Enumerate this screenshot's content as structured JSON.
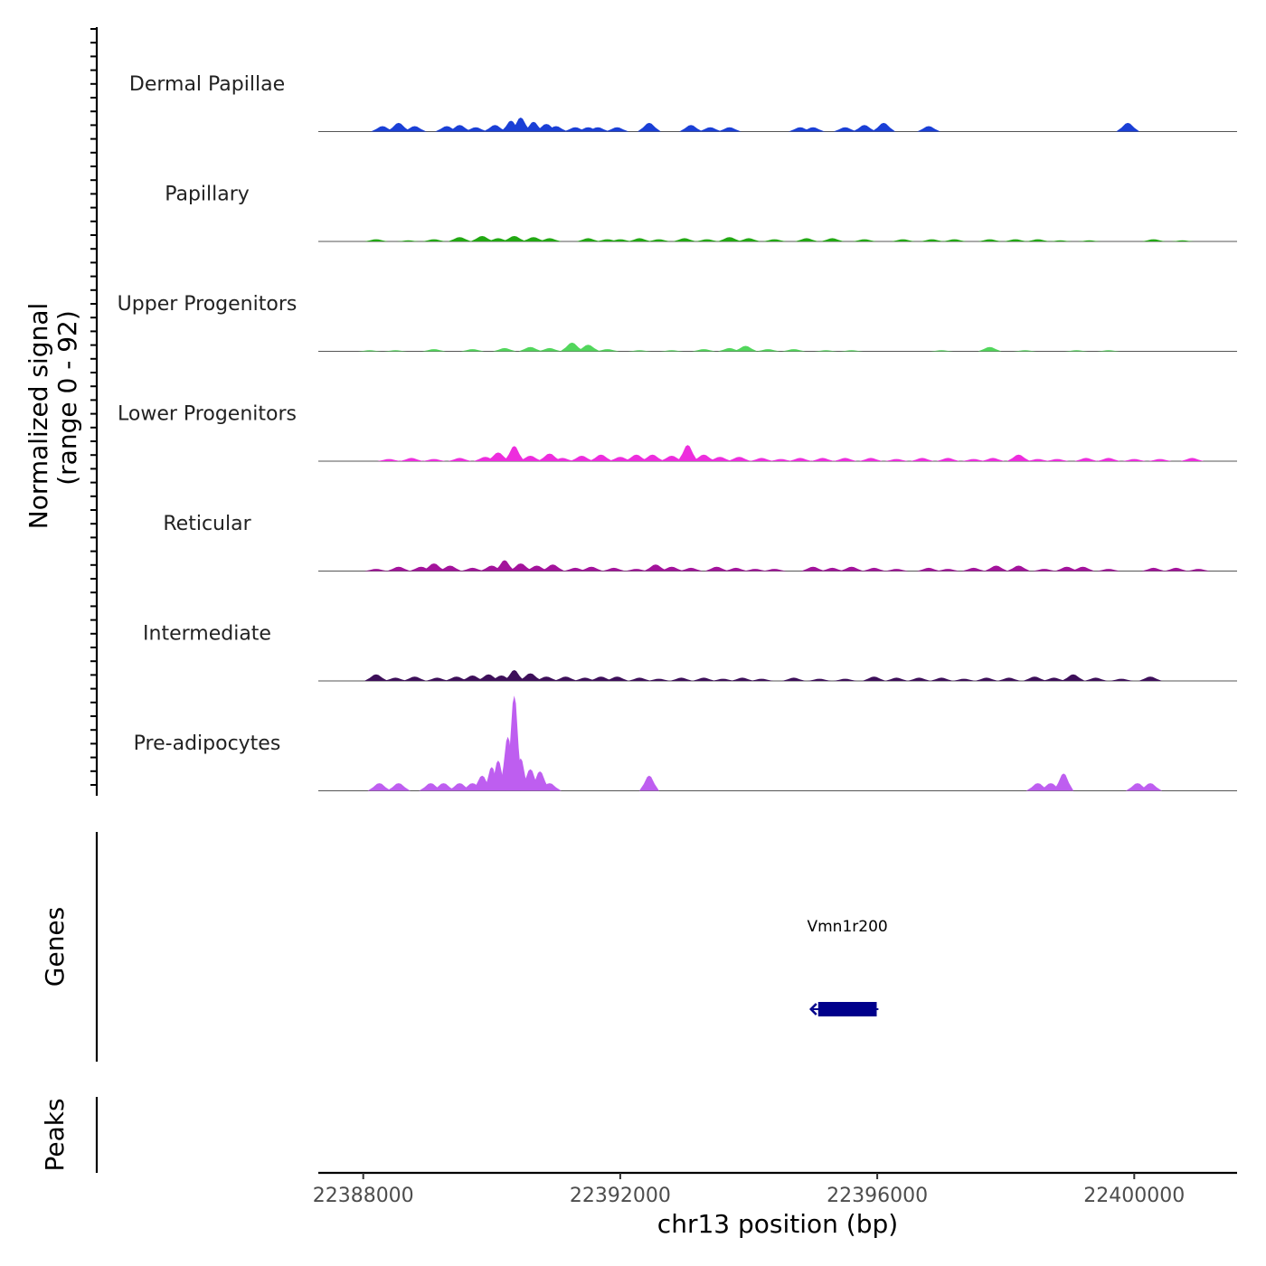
{
  "chart_data": {
    "type": "area",
    "title": "",
    "chromosome": "chr13",
    "xlabel": "chr13 position (bp)",
    "ylabel": "Normalized signal",
    "ylabel_range": "(range 0 - 92)",
    "ylim": [
      0,
      92
    ],
    "xlim": [
      22387300,
      22401600
    ],
    "x_ticks": [
      22388000,
      22392000,
      22396000,
      22400000
    ],
    "x_tick_labels": [
      "22388000",
      "22392000",
      "22396000",
      "22400000"
    ],
    "series": [
      {
        "name": "Dermal Papillae",
        "color": "#1a3fd6",
        "peaks": [
          [
            22388300,
            5
          ],
          [
            22388550,
            8
          ],
          [
            22388800,
            5
          ],
          [
            22389300,
            5
          ],
          [
            22389500,
            6
          ],
          [
            22389750,
            4
          ],
          [
            22390050,
            6
          ],
          [
            22390300,
            10
          ],
          [
            22390450,
            13
          ],
          [
            22390650,
            9
          ],
          [
            22390850,
            7
          ],
          [
            22391000,
            5
          ],
          [
            22391300,
            4
          ],
          [
            22391500,
            4
          ],
          [
            22391650,
            4
          ],
          [
            22391950,
            4
          ],
          [
            22392450,
            8
          ],
          [
            22393100,
            6
          ],
          [
            22393400,
            4
          ],
          [
            22393700,
            4
          ],
          [
            22394800,
            4
          ],
          [
            22395000,
            4
          ],
          [
            22395500,
            4
          ],
          [
            22395800,
            6
          ],
          [
            22396100,
            8
          ],
          [
            22396800,
            5
          ],
          [
            22399900,
            8
          ]
        ]
      },
      {
        "name": "Papillary",
        "color": "#21a812",
        "peaks": [
          [
            22388200,
            2
          ],
          [
            22388700,
            1
          ],
          [
            22389100,
            2
          ],
          [
            22389500,
            4
          ],
          [
            22389850,
            5
          ],
          [
            22390100,
            3
          ],
          [
            22390350,
            5
          ],
          [
            22390650,
            4
          ],
          [
            22390900,
            3
          ],
          [
            22391500,
            3
          ],
          [
            22391800,
            2
          ],
          [
            22392000,
            2
          ],
          [
            22392300,
            3
          ],
          [
            22392600,
            2
          ],
          [
            22393000,
            3
          ],
          [
            22393350,
            2
          ],
          [
            22393700,
            4
          ],
          [
            22394000,
            3
          ],
          [
            22394400,
            2
          ],
          [
            22394900,
            3
          ],
          [
            22395300,
            3
          ],
          [
            22395800,
            2
          ],
          [
            22396400,
            2
          ],
          [
            22396850,
            2
          ],
          [
            22397200,
            2
          ],
          [
            22397750,
            2
          ],
          [
            22398150,
            2
          ],
          [
            22398500,
            2
          ],
          [
            22398850,
            1
          ],
          [
            22399300,
            1
          ],
          [
            22400300,
            2
          ],
          [
            22400750,
            1
          ]
        ]
      },
      {
        "name": "Upper Progenitors",
        "color": "#52d65c",
        "peaks": [
          [
            22388100,
            1
          ],
          [
            22388500,
            1
          ],
          [
            22389100,
            2
          ],
          [
            22389700,
            2
          ],
          [
            22390200,
            3
          ],
          [
            22390600,
            4
          ],
          [
            22390900,
            3
          ],
          [
            22391250,
            8
          ],
          [
            22391500,
            6
          ],
          [
            22391800,
            2
          ],
          [
            22392300,
            1
          ],
          [
            22392800,
            1
          ],
          [
            22393300,
            2
          ],
          [
            22393700,
            3
          ],
          [
            22393950,
            5
          ],
          [
            22394300,
            2
          ],
          [
            22394700,
            2
          ],
          [
            22395200,
            1
          ],
          [
            22395600,
            1
          ],
          [
            22397000,
            1
          ],
          [
            22397750,
            4
          ],
          [
            22398300,
            1
          ],
          [
            22399100,
            1
          ],
          [
            22399600,
            1
          ]
        ]
      },
      {
        "name": "Lower Progenitors",
        "color": "#ed2ddd",
        "peaks": [
          [
            22388400,
            2
          ],
          [
            22388750,
            3
          ],
          [
            22389100,
            2
          ],
          [
            22389500,
            3
          ],
          [
            22389900,
            4
          ],
          [
            22390100,
            8
          ],
          [
            22390350,
            14
          ],
          [
            22390600,
            5
          ],
          [
            22390900,
            7
          ],
          [
            22391100,
            3
          ],
          [
            22391400,
            5
          ],
          [
            22391700,
            6
          ],
          [
            22392000,
            4
          ],
          [
            22392250,
            6
          ],
          [
            22392500,
            6
          ],
          [
            22392800,
            5
          ],
          [
            22393050,
            15
          ],
          [
            22393300,
            6
          ],
          [
            22393550,
            4
          ],
          [
            22393850,
            4
          ],
          [
            22394200,
            3
          ],
          [
            22394500,
            2
          ],
          [
            22394800,
            3
          ],
          [
            22395150,
            3
          ],
          [
            22395500,
            3
          ],
          [
            22395900,
            3
          ],
          [
            22396300,
            2
          ],
          [
            22396700,
            3
          ],
          [
            22397100,
            3
          ],
          [
            22397500,
            2
          ],
          [
            22397800,
            3
          ],
          [
            22398200,
            6
          ],
          [
            22398500,
            2
          ],
          [
            22398800,
            2
          ],
          [
            22399250,
            3
          ],
          [
            22399600,
            3
          ],
          [
            22400000,
            2
          ],
          [
            22400400,
            2
          ],
          [
            22400900,
            3
          ]
        ]
      },
      {
        "name": "Reticular",
        "color": "#a3139b",
        "peaks": [
          [
            22388200,
            2
          ],
          [
            22388550,
            4
          ],
          [
            22388900,
            4
          ],
          [
            22389100,
            7
          ],
          [
            22389350,
            5
          ],
          [
            22389700,
            3
          ],
          [
            22390000,
            5
          ],
          [
            22390200,
            10
          ],
          [
            22390450,
            7
          ],
          [
            22390700,
            5
          ],
          [
            22390950,
            6
          ],
          [
            22391300,
            3
          ],
          [
            22391550,
            4
          ],
          [
            22391900,
            3
          ],
          [
            22392250,
            2
          ],
          [
            22392550,
            6
          ],
          [
            22392800,
            4
          ],
          [
            22393100,
            3
          ],
          [
            22393500,
            4
          ],
          [
            22393800,
            3
          ],
          [
            22394100,
            2
          ],
          [
            22394400,
            2
          ],
          [
            22395000,
            4
          ],
          [
            22395300,
            3
          ],
          [
            22395600,
            4
          ],
          [
            22395950,
            3
          ],
          [
            22396300,
            2
          ],
          [
            22396800,
            3
          ],
          [
            22397100,
            2
          ],
          [
            22397500,
            3
          ],
          [
            22397850,
            5
          ],
          [
            22398200,
            5
          ],
          [
            22398600,
            2
          ],
          [
            22398950,
            4
          ],
          [
            22399200,
            4
          ],
          [
            22399600,
            2
          ],
          [
            22400300,
            3
          ],
          [
            22400650,
            3
          ],
          [
            22401000,
            2
          ]
        ]
      },
      {
        "name": "Intermediate",
        "color": "#3d0f59",
        "peaks": [
          [
            22388200,
            6
          ],
          [
            22388500,
            3
          ],
          [
            22388800,
            4
          ],
          [
            22389150,
            3
          ],
          [
            22389450,
            4
          ],
          [
            22389700,
            5
          ],
          [
            22389950,
            6
          ],
          [
            22390150,
            5
          ],
          [
            22390350,
            10
          ],
          [
            22390600,
            7
          ],
          [
            22390850,
            4
          ],
          [
            22391150,
            4
          ],
          [
            22391450,
            3
          ],
          [
            22391700,
            4
          ],
          [
            22391950,
            4
          ],
          [
            22392300,
            3
          ],
          [
            22392600,
            2
          ],
          [
            22392950,
            3
          ],
          [
            22393300,
            3
          ],
          [
            22393600,
            2
          ],
          [
            22393900,
            3
          ],
          [
            22394200,
            2
          ],
          [
            22394700,
            3
          ],
          [
            22395100,
            2
          ],
          [
            22395500,
            2
          ],
          [
            22395950,
            4
          ],
          [
            22396300,
            3
          ],
          [
            22396650,
            3
          ],
          [
            22397000,
            3
          ],
          [
            22397350,
            2
          ],
          [
            22397700,
            3
          ],
          [
            22398050,
            3
          ],
          [
            22398450,
            4
          ],
          [
            22398750,
            3
          ],
          [
            22399050,
            6
          ],
          [
            22399400,
            3
          ],
          [
            22399800,
            2
          ],
          [
            22400250,
            4
          ]
        ]
      },
      {
        "name": "Pre-adipocytes",
        "color": "#be5ef0",
        "peaks": [
          [
            22388250,
            7
          ],
          [
            22388550,
            7
          ],
          [
            22389050,
            7
          ],
          [
            22389250,
            7
          ],
          [
            22389500,
            7
          ],
          [
            22389700,
            7
          ],
          [
            22389850,
            14
          ],
          [
            22390000,
            22
          ],
          [
            22390100,
            28
          ],
          [
            22390250,
            50
          ],
          [
            22390350,
            88
          ],
          [
            22390450,
            30
          ],
          [
            22390600,
            20
          ],
          [
            22390750,
            18
          ],
          [
            22390900,
            7
          ],
          [
            22392450,
            14
          ],
          [
            22398500,
            7
          ],
          [
            22398700,
            7
          ],
          [
            22398900,
            16
          ],
          [
            22400050,
            7
          ],
          [
            22400250,
            7
          ]
        ]
      }
    ],
    "gene_track": {
      "label": "Genes",
      "genes": [
        {
          "name": "Vmn1r200",
          "start": 22395080,
          "end": 22395990,
          "strand": "-",
          "color": "#00008b"
        }
      ]
    },
    "peak_track": {
      "label": "Peaks",
      "peaks": []
    }
  }
}
